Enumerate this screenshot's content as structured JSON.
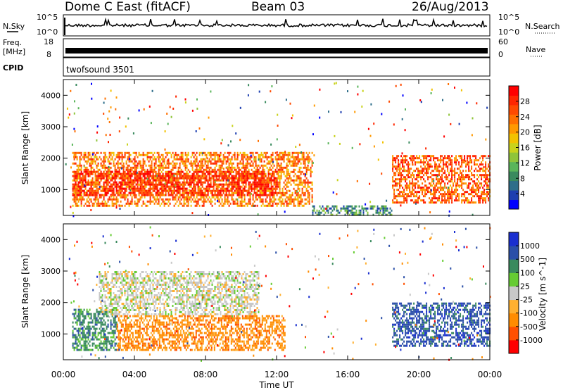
{
  "header": {
    "station": "Dome C East (fitACF)",
    "beam": "Beam 03",
    "date": "26/Aug/2013"
  },
  "strip_labels": {
    "nsky": "N.Sky",
    "nsearch": "N.Search",
    "freq": "Freq.",
    "freq_unit": "[MHz]",
    "nave": "Nave",
    "cpid": "CPID",
    "cpid_value": "twofsound 3501",
    "noise_ticks": [
      "10^5",
      "10^0"
    ],
    "freq_ticks": [
      "18",
      "8"
    ],
    "nave_ticks": [
      "60",
      "0"
    ]
  },
  "colorbars": {
    "power": {
      "label": "Power [dB]",
      "ticks": [
        "28",
        "24",
        "20",
        "16",
        "12",
        "8",
        "4"
      ],
      "colors": [
        "#0000ff",
        "#1e3fb0",
        "#2e6e8a",
        "#3a8a5e",
        "#5ab55a",
        "#8fc43a",
        "#c9d21c",
        "#f2c200",
        "#ff9900",
        "#ff7000",
        "#ff4a00",
        "#ff2600",
        "#ff0000"
      ]
    },
    "velocity": {
      "label": "Velocity [m s^-1]",
      "ticks": [
        "1000",
        "500",
        "100",
        "25",
        "-25",
        "-100",
        "-500",
        "-1000"
      ],
      "colors": [
        "#ff0000",
        "#ff5000",
        "#ff8c00",
        "#ffb030",
        "#c8c8c8",
        "#66cc33",
        "#3a8a5e",
        "#2b4fa8",
        "#1a2fd0"
      ]
    }
  },
  "chart_data": [
    {
      "type": "heatmap",
      "title": "",
      "ylabel": "Slant Range [km]",
      "xlabel": "",
      "ylim": [
        180,
        4500
      ],
      "xlim": [
        0,
        24
      ],
      "yticks": [
        "1000",
        "2000",
        "3000",
        "4000"
      ],
      "colorbar": "Power [dB]",
      "approximate_echo_regions": [
        {
          "t": [
            0.5,
            14.0
          ],
          "range": [
            500,
            2200
          ],
          "power_db": 24
        },
        {
          "t": [
            0.5,
            12.0
          ],
          "range": [
            800,
            1600
          ],
          "power_db": 30
        },
        {
          "t": [
            14.0,
            18.5
          ],
          "range": [
            200,
            500
          ],
          "power_db": 8
        },
        {
          "t": [
            18.5,
            24.0
          ],
          "range": [
            600,
            2100
          ],
          "power_db": 26
        }
      ]
    },
    {
      "type": "heatmap",
      "title": "",
      "ylabel": "Slant Range [km]",
      "xlabel": "Time UT",
      "ylim": [
        180,
        4500
      ],
      "xlim": [
        0,
        24
      ],
      "yticks": [
        "1000",
        "2000",
        "3000",
        "4000"
      ],
      "xticks": [
        "00:00",
        "04:00",
        "08:00",
        "12:00",
        "16:00",
        "20:00",
        "00:00"
      ],
      "colorbar": "Velocity [m s^-1]",
      "approximate_echo_regions": [
        {
          "t": [
            0.5,
            3.0
          ],
          "range": [
            500,
            1800
          ],
          "velocity": 300
        },
        {
          "t": [
            3.0,
            12.5
          ],
          "range": [
            500,
            1600
          ],
          "velocity": -100
        },
        {
          "t": [
            2.0,
            11.0
          ],
          "range": [
            1600,
            3000
          ],
          "velocity": 0
        },
        {
          "t": [
            18.5,
            24.0
          ],
          "range": [
            600,
            2000
          ],
          "velocity": 500
        }
      ]
    }
  ]
}
